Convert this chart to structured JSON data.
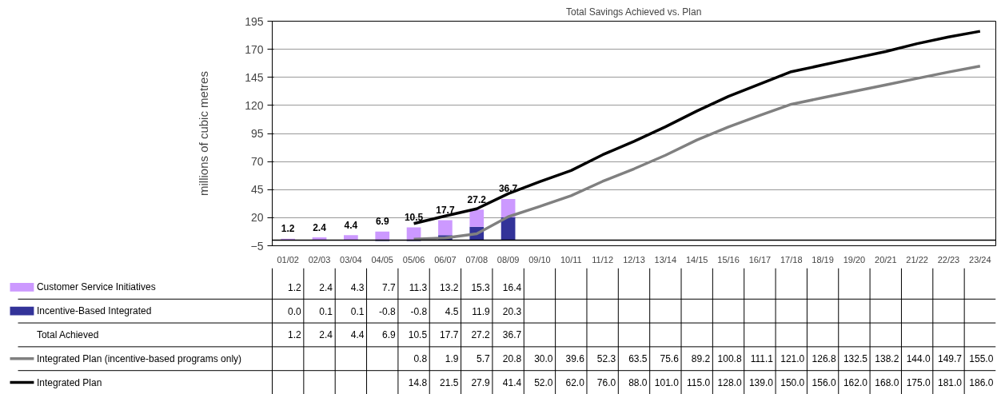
{
  "chart_data": {
    "type": "bar",
    "stacked": true,
    "title": "Total Savings Achieved vs. Plan",
    "ylabel": "millions of cubic metres",
    "categories": [
      "01/02",
      "02/03",
      "03/04",
      "04/05",
      "05/06",
      "06/07",
      "07/08",
      "08/09",
      "09/10",
      "10/11",
      "11/12",
      "12/13",
      "13/14",
      "14/15",
      "15/16",
      "16/17",
      "17/18",
      "18/19",
      "19/20",
      "20/21",
      "21/22",
      "22/23",
      "23/24"
    ],
    "series": [
      {
        "name": "Incentive-Based Integrated",
        "color": "#333399",
        "values": [
          0.0,
          0.1,
          0.1,
          -0.8,
          -0.8,
          4.5,
          11.9,
          20.3,
          null,
          null,
          null,
          null,
          null,
          null,
          null,
          null,
          null,
          null,
          null,
          null,
          null,
          null,
          null
        ],
        "value_labels": [
          "0.0",
          "0.1",
          "0.1",
          "-0.8",
          "-0.8",
          "4.5",
          "11.9",
          "20.3",
          null,
          null,
          null,
          null,
          null,
          null,
          null,
          null,
          null,
          null,
          null,
          null,
          null,
          null,
          null
        ]
      },
      {
        "name": "Customer Service Initiatives",
        "color": "#cc99ff",
        "values": [
          1.2,
          2.4,
          4.3,
          7.7,
          11.3,
          13.2,
          15.3,
          16.4,
          null,
          null,
          null,
          null,
          null,
          null,
          null,
          null,
          null,
          null,
          null,
          null,
          null,
          null,
          null
        ],
        "value_labels": [
          "1.2",
          "2.4",
          "4.3",
          "7.7",
          "11.3",
          "13.2",
          "15.3",
          "16.4",
          null,
          null,
          null,
          null,
          null,
          null,
          null,
          null,
          null,
          null,
          null,
          null,
          null,
          null,
          null
        ]
      },
      {
        "name": "Integrated Plan (incentive-based programs only)",
        "type": "line",
        "color": "#808080",
        "values": [
          null,
          null,
          null,
          null,
          0.8,
          1.9,
          5.7,
          20.8,
          30.0,
          39.6,
          52.3,
          63.5,
          75.6,
          89.2,
          100.8,
          111.1,
          121.0,
          126.8,
          132.5,
          138.2,
          144.0,
          149.7,
          155.0
        ],
        "value_labels": [
          null,
          null,
          null,
          null,
          "0.8",
          "1.9",
          "5.7",
          "20.8",
          "30.0",
          "39.6",
          "52.3",
          "63.5",
          "75.6",
          "89.2",
          "100.8",
          "111.1",
          "121.0",
          "126.8",
          "132.5",
          "138.2",
          "144.0",
          "149.7",
          "155.0"
        ]
      },
      {
        "name": "Integrated Plan",
        "type": "line",
        "color": "#000000",
        "values": [
          null,
          null,
          null,
          null,
          14.8,
          21.5,
          27.9,
          41.4,
          52.0,
          62.0,
          76.0,
          88.0,
          101.0,
          115.0,
          128.0,
          139.0,
          150.0,
          156.0,
          162.0,
          168.0,
          175.0,
          181.0,
          186.0
        ],
        "value_labels": [
          null,
          null,
          null,
          null,
          "14.8",
          "21.5",
          "27.9",
          "41.4",
          "52.0",
          "62.0",
          "76.0",
          "88.0",
          "101.0",
          "115.0",
          "128.0",
          "139.0",
          "150.0",
          "156.0",
          "162.0",
          "168.0",
          "175.0",
          "181.0",
          "186.0"
        ]
      }
    ],
    "totals": [
      "1.2",
      "2.4",
      "4.4",
      "6.9",
      "10.5",
      "17.7",
      "27.2",
      "36.7",
      null,
      null,
      null,
      null,
      null,
      null,
      null,
      null,
      null,
      null,
      null,
      null,
      null,
      null,
      null
    ],
    "annotations": [
      "Total Achieved"
    ],
    "ylim": [
      -5,
      195
    ],
    "yticks": [
      -5,
      20,
      45,
      70,
      95,
      120,
      145,
      170,
      195
    ],
    "grid": "y",
    "legend": "bottom",
    "line_style": "solid",
    "marker": "none"
  }
}
